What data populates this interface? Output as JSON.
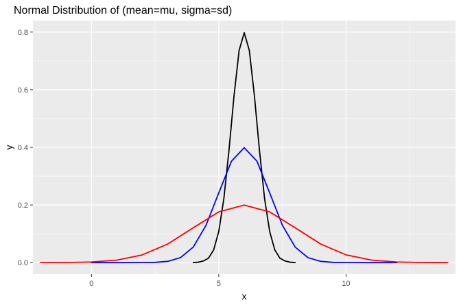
{
  "chart_data": {
    "type": "line",
    "title": "Normal Distribution of (mean=mu, sigma=sd)",
    "xlabel": "x",
    "ylabel": "y",
    "xlim": [
      -2.3,
      14.3
    ],
    "ylim": [
      -0.04,
      0.84
    ],
    "x_ticks": [
      {
        "value": 0,
        "label": "0"
      },
      {
        "value": 5,
        "label": "5"
      },
      {
        "value": 10,
        "label": "10"
      }
    ],
    "y_ticks": [
      {
        "value": 0.0,
        "label": "0.0"
      },
      {
        "value": 0.2,
        "label": "0.2"
      },
      {
        "value": 0.4,
        "label": "0.4"
      },
      {
        "value": 0.6,
        "label": "0.6"
      },
      {
        "value": 0.8,
        "label": "0.8"
      }
    ],
    "grid": true,
    "legend": "none",
    "series": [
      {
        "color": "#000000",
        "mean": 6,
        "sd": 0.5,
        "x_range": [
          4,
          8
        ],
        "x": [
          4.0,
          4.2,
          4.4,
          4.6,
          4.8,
          5.0,
          5.2,
          5.4,
          5.6,
          5.8,
          6.0,
          6.2,
          6.4,
          6.6,
          6.8,
          7.0,
          7.2,
          7.4,
          7.6,
          7.8,
          8.0
        ],
        "y": [
          0.0003,
          0.0015,
          0.0058,
          0.0158,
          0.0443,
          0.108,
          0.2218,
          0.3884,
          0.5794,
          0.7365,
          0.7979,
          0.7365,
          0.5794,
          0.3884,
          0.2218,
          0.108,
          0.0443,
          0.0158,
          0.0058,
          0.0015,
          0.0003
        ]
      },
      {
        "color": "#0000ff",
        "mean": 6,
        "sd": 1,
        "x_range": [
          0,
          12
        ],
        "x": [
          0.0,
          1.0,
          2.0,
          2.5,
          3.0,
          3.5,
          4.0,
          4.5,
          5.0,
          5.5,
          6.0,
          6.5,
          7.0,
          7.5,
          8.0,
          8.5,
          9.0,
          9.5,
          10.0,
          11.0,
          12.0
        ],
        "y": [
          0.0,
          0.0,
          0.0001,
          0.0009,
          0.0044,
          0.0175,
          0.054,
          0.1295,
          0.242,
          0.3521,
          0.3989,
          0.3521,
          0.242,
          0.1295,
          0.054,
          0.0175,
          0.0044,
          0.0009,
          0.0001,
          0.0,
          0.0
        ]
      },
      {
        "color": "#ff0000",
        "mean": 6,
        "sd": 2,
        "x_range": [
          -2,
          14
        ],
        "x": [
          -2,
          -1,
          0,
          1,
          2,
          3,
          4,
          5,
          6,
          7,
          8,
          9,
          10,
          11,
          12,
          13,
          14
        ],
        "y": [
          0.0001,
          0.0004,
          0.0022,
          0.0088,
          0.027,
          0.0648,
          0.121,
          0.176,
          0.1995,
          0.176,
          0.121,
          0.0648,
          0.027,
          0.0088,
          0.0022,
          0.0004,
          0.0001
        ]
      }
    ]
  }
}
